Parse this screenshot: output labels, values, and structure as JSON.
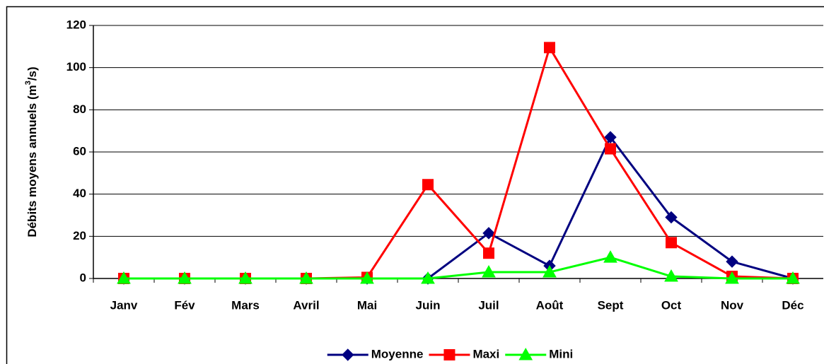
{
  "chart_data": {
    "type": "line",
    "ylabel": [
      "Débits moyens annuels (m",
      "3",
      "/s)"
    ],
    "categories": [
      "Janv",
      "Fév",
      "Mars",
      "Avril",
      "Mai",
      "Juin",
      "Juil",
      "Août",
      "Sept",
      "Oct",
      "Nov",
      "Déc"
    ],
    "series": [
      {
        "name": "Moyenne",
        "color": "#000080",
        "marker": "diamond",
        "values": [
          0,
          0,
          0,
          0,
          0,
          0,
          21.5,
          6,
          67,
          29,
          8,
          0
        ]
      },
      {
        "name": "Maxi",
        "color": "#ff0000",
        "marker": "square",
        "values": [
          0,
          0,
          0,
          0,
          0.5,
          44.5,
          12,
          109.5,
          61.5,
          17,
          1,
          0
        ]
      },
      {
        "name": "Mini",
        "color": "#00ff00",
        "marker": "triangle",
        "values": [
          0,
          0,
          0,
          0,
          0,
          0,
          3,
          3,
          10,
          1,
          0,
          0
        ]
      }
    ],
    "ylim": [
      0,
      120
    ],
    "yticks": [
      0,
      20,
      40,
      60,
      80,
      100,
      120
    ],
    "grid": true,
    "legend": "bottom"
  }
}
